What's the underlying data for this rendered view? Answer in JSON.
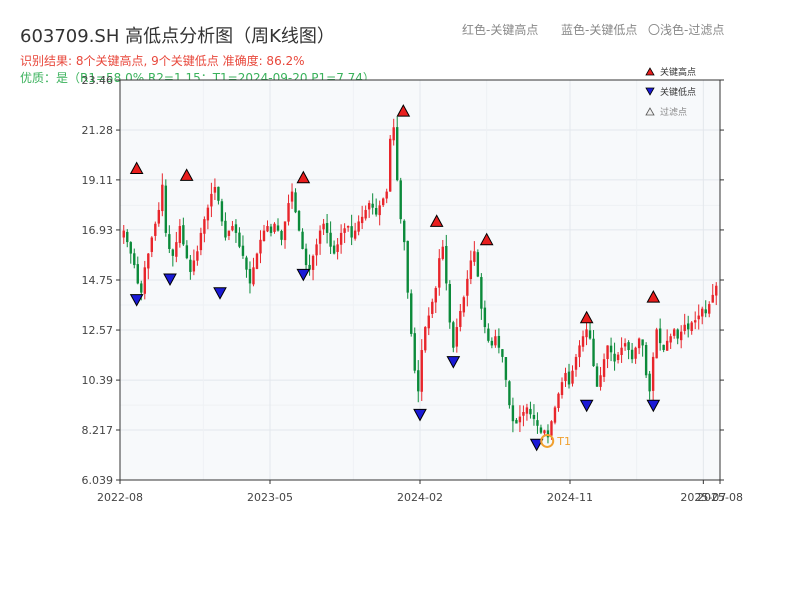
{
  "header": {
    "title": "603709.SH 高低点分析图（周K线图）",
    "legend_red": "红色-关键高点",
    "legend_blue": "蓝色-关键低点",
    "legend_light": "〇浅色-过滤点",
    "info_line1": "识别结果: 8个关键高点, 9个关键低点  准确度: 86.2%",
    "info_line2": "优质：是（R1=58.0%  R2=1.15；T1=2024-09-20 P1=7.74）"
  },
  "colors": {
    "up": "#e8252b",
    "down": "#0b8a3a",
    "high_marker": "#e81e1e",
    "low_marker": "#1a1ad6",
    "t1": "#f0a030"
  },
  "chart_data": {
    "type": "candlestick",
    "title": "",
    "xlabel": "",
    "ylabel": "",
    "y_ticks": [
      "6.039",
      "8.217",
      "10.39",
      "12.57",
      "14.75",
      "16.93",
      "19.11",
      "21.28",
      "23.46"
    ],
    "ylim": [
      6.039,
      23.46
    ],
    "x_ticks": [
      "2022-08",
      "2023-05",
      "2024-02",
      "2024-11",
      "2025-07",
      "2025-08"
    ],
    "xlim": [
      "2022-08",
      "2025-08"
    ],
    "legend": {
      "placement": "top-right",
      "entries": [
        "关键高点",
        "关键低点",
        "过滤点"
      ]
    },
    "weekly_close": [
      16.9,
      16.4,
      15.9,
      15.4,
      14.6,
      14.2,
      15.3,
      15.9,
      16.6,
      17.2,
      17.8,
      18.9,
      16.8,
      16.1,
      15.8,
      16.4,
      17.1,
      16.3,
      15.7,
      15.1,
      15.6,
      16.0,
      16.8,
      17.4,
      17.9,
      18.5,
      18.8,
      18.2,
      17.3,
      16.6,
      16.9,
      17.1,
      16.8,
      16.2,
      15.8,
      15.2,
      14.6,
      15.3,
      15.9,
      16.5,
      16.9,
      17.1,
      16.8,
      17.2,
      16.9,
      16.5,
      17.3,
      18.1,
      18.6,
      17.7,
      16.9,
      16.1,
      15.4,
      15.2,
      15.8,
      16.3,
      16.9,
      17.2,
      16.8,
      16.2,
      15.9,
      16.3,
      16.8,
      17.0,
      17.1,
      16.6,
      16.9,
      17.3,
      17.5,
      17.8,
      18.1,
      17.9,
      17.6,
      18.0,
      18.3,
      18.6,
      20.9,
      21.4,
      19.1,
      17.4,
      16.4,
      14.2,
      12.4,
      10.8,
      9.9,
      11.7,
      12.7,
      13.2,
      13.8,
      14.4,
      15.7,
      16.2,
      14.6,
      12.9,
      11.8,
      12.7,
      13.4,
      14.0,
      14.8,
      15.6,
      16.0,
      14.9,
      13.5,
      12.7,
      12.1,
      11.9,
      12.3,
      11.8,
      11.4,
      10.4,
      9.3,
      8.6,
      8.5,
      8.8,
      9.0,
      9.2,
      8.9,
      8.7,
      8.4,
      8.1,
      8.2,
      7.9,
      8.6,
      9.2,
      9.8,
      10.3,
      10.7,
      10.2,
      10.8,
      11.4,
      11.9,
      12.3,
      12.6,
      12.2,
      11.0,
      10.1,
      10.6,
      11.3,
      11.9,
      11.6,
      11.2,
      11.5,
      11.8,
      12.0,
      11.7,
      11.3,
      11.8,
      12.2,
      11.9,
      10.6,
      9.9,
      11.4,
      12.6,
      12.0,
      11.7,
      12.1,
      12.3,
      12.6,
      12.2,
      12.5,
      12.8,
      12.6,
      12.9,
      13.0,
      13.2,
      13.5,
      13.3,
      13.7,
      14.1,
      14.5
    ],
    "key_highs": [
      {
        "date": "2022-09",
        "price": 19.3
      },
      {
        "date": "2022-12",
        "price": 19.0
      },
      {
        "date": "2023-07",
        "price": 18.9
      },
      {
        "date": "2024-01",
        "price": 21.8
      },
      {
        "date": "2024-03",
        "price": 17.0
      },
      {
        "date": "2024-06",
        "price": 16.2
      },
      {
        "date": "2024-12",
        "price": 12.8
      },
      {
        "date": "2025-04",
        "price": 13.7
      }
    ],
    "key_lows": [
      {
        "date": "2022-09",
        "price": 14.2
      },
      {
        "date": "2022-11",
        "price": 15.1
      },
      {
        "date": "2023-02",
        "price": 14.5
      },
      {
        "date": "2023-07",
        "price": 15.3
      },
      {
        "date": "2024-02",
        "price": 9.2
      },
      {
        "date": "2024-04",
        "price": 11.5
      },
      {
        "date": "2024-09",
        "price": 7.9
      },
      {
        "date": "2024-12",
        "price": 9.6
      },
      {
        "date": "2025-04",
        "price": 9.6
      }
    ],
    "t1": {
      "label": "T1",
      "date": "2024-09-20",
      "price": 7.74
    }
  }
}
